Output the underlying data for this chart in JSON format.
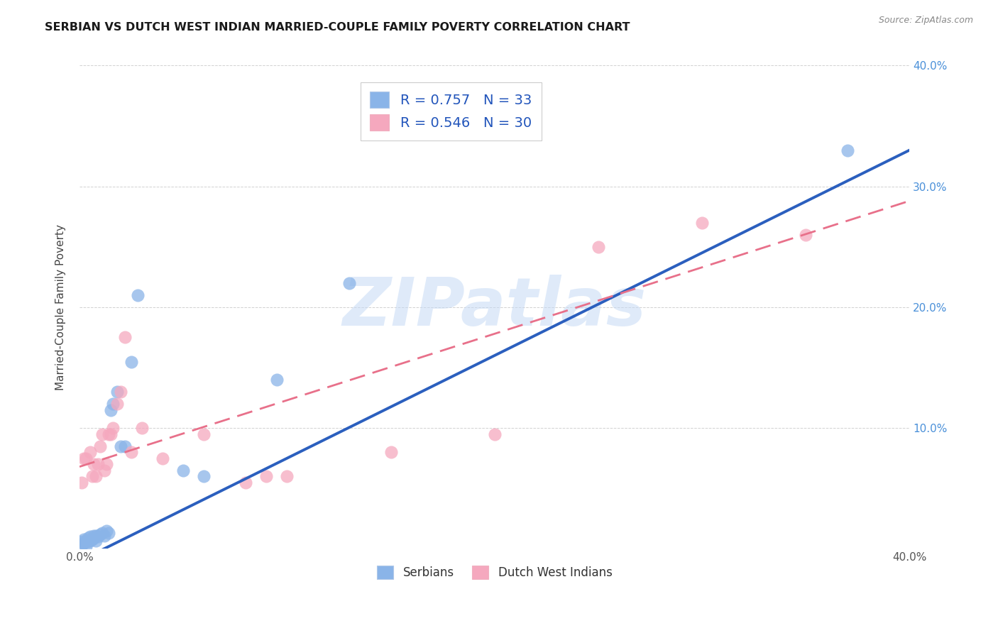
{
  "title": "SERBIAN VS DUTCH WEST INDIAN MARRIED-COUPLE FAMILY POVERTY CORRELATION CHART",
  "source": "Source: ZipAtlas.com",
  "ylabel": "Married-Couple Family Poverty",
  "xlim": [
    0.0,
    0.4
  ],
  "ylim": [
    0.0,
    0.4
  ],
  "xtick_positions": [
    0.0,
    0.05,
    0.1,
    0.15,
    0.2,
    0.25,
    0.3,
    0.35,
    0.4
  ],
  "xticklabels": [
    "0.0%",
    "",
    "",
    "",
    "",
    "",
    "",
    "",
    "40.0%"
  ],
  "ytick_positions": [
    0.0,
    0.1,
    0.2,
    0.3,
    0.4
  ],
  "yticklabels_right": [
    "",
    "10.0%",
    "20.0%",
    "30.0%",
    "40.0%"
  ],
  "serbian_color": "#8ab4e8",
  "dutch_color": "#f5a8be",
  "serbian_line_color": "#2b5fbe",
  "dutch_line_color": "#e8708a",
  "watermark_color": "#c5daf5",
  "watermark_text": "ZIPatlas",
  "legend1_label1": "R = 0.757   N = 33",
  "legend1_label2": "R = 0.546   N = 30",
  "legend2_label1": "Serbians",
  "legend2_label2": "Dutch West Indians",
  "serbian_x": [
    0.001,
    0.001,
    0.002,
    0.002,
    0.003,
    0.003,
    0.004,
    0.004,
    0.005,
    0.005,
    0.006,
    0.007,
    0.007,
    0.008,
    0.008,
    0.009,
    0.01,
    0.011,
    0.012,
    0.013,
    0.014,
    0.015,
    0.016,
    0.018,
    0.02,
    0.022,
    0.025,
    0.028,
    0.05,
    0.06,
    0.095,
    0.13,
    0.37
  ],
  "serbian_y": [
    0.003,
    0.006,
    0.005,
    0.008,
    0.002,
    0.007,
    0.006,
    0.009,
    0.007,
    0.01,
    0.008,
    0.009,
    0.011,
    0.007,
    0.011,
    0.01,
    0.012,
    0.013,
    0.011,
    0.015,
    0.013,
    0.115,
    0.12,
    0.13,
    0.085,
    0.085,
    0.155,
    0.21,
    0.065,
    0.06,
    0.14,
    0.22,
    0.33
  ],
  "dutch_x": [
    0.001,
    0.002,
    0.003,
    0.005,
    0.006,
    0.007,
    0.008,
    0.009,
    0.01,
    0.011,
    0.012,
    0.013,
    0.014,
    0.015,
    0.016,
    0.018,
    0.02,
    0.022,
    0.025,
    0.03,
    0.04,
    0.06,
    0.08,
    0.09,
    0.1,
    0.15,
    0.2,
    0.25,
    0.3,
    0.35
  ],
  "dutch_y": [
    0.055,
    0.075,
    0.075,
    0.08,
    0.06,
    0.07,
    0.06,
    0.07,
    0.085,
    0.095,
    0.065,
    0.07,
    0.095,
    0.095,
    0.1,
    0.12,
    0.13,
    0.175,
    0.08,
    0.1,
    0.075,
    0.095,
    0.055,
    0.06,
    0.06,
    0.08,
    0.095,
    0.25,
    0.27,
    0.26
  ]
}
